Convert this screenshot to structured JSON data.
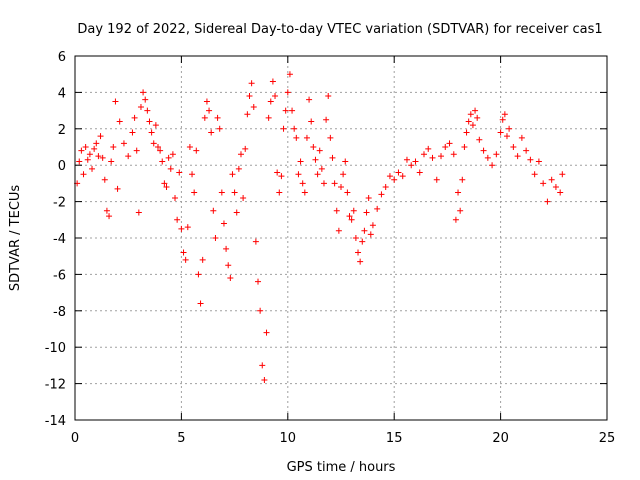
{
  "chart_data": {
    "type": "scatter",
    "title": "Day 192 of 2022, Sidereal Day-to-day VTEC variation (SDTVAR) for receiver cas1",
    "xlabel": "GPS time / hours",
    "ylabel": "SDTVAR / TECUs",
    "xlim": [
      0,
      25
    ],
    "ylim": [
      -14,
      6
    ],
    "xticks": [
      0,
      5,
      10,
      15,
      20,
      25
    ],
    "yticks": [
      -14,
      -12,
      -10,
      -8,
      -6,
      -4,
      -2,
      0,
      2,
      4,
      6
    ],
    "grid": true,
    "marker": "plus",
    "color": "#ff0000",
    "legend": "none",
    "series": [
      {
        "name": "SDTVAR",
        "points": [
          [
            0.1,
            -1.0
          ],
          [
            0.2,
            0.2
          ],
          [
            0.3,
            0.8
          ],
          [
            0.4,
            -0.5
          ],
          [
            0.5,
            1.0
          ],
          [
            0.6,
            0.3
          ],
          [
            0.7,
            0.6
          ],
          [
            0.8,
            -0.2
          ],
          [
            0.9,
            0.9
          ],
          [
            1.0,
            1.2
          ],
          [
            1.1,
            0.5
          ],
          [
            1.2,
            1.6
          ],
          [
            1.3,
            0.4
          ],
          [
            1.4,
            -0.8
          ],
          [
            1.5,
            -2.5
          ],
          [
            1.6,
            -2.8
          ],
          [
            1.7,
            0.2
          ],
          [
            1.8,
            1.0
          ],
          [
            1.9,
            3.5
          ],
          [
            2.0,
            -1.3
          ],
          [
            2.1,
            2.4
          ],
          [
            2.3,
            1.2
          ],
          [
            2.5,
            0.5
          ],
          [
            2.7,
            1.8
          ],
          [
            2.8,
            2.6
          ],
          [
            2.9,
            0.8
          ],
          [
            3.0,
            -2.6
          ],
          [
            3.1,
            3.2
          ],
          [
            3.2,
            4.0
          ],
          [
            3.3,
            3.6
          ],
          [
            3.4,
            3.0
          ],
          [
            3.5,
            2.4
          ],
          [
            3.6,
            1.8
          ],
          [
            3.7,
            1.2
          ],
          [
            3.8,
            2.2
          ],
          [
            3.9,
            1.0
          ],
          [
            4.0,
            0.8
          ],
          [
            4.1,
            0.2
          ],
          [
            4.2,
            -1.0
          ],
          [
            4.3,
            -1.2
          ],
          [
            4.4,
            0.4
          ],
          [
            4.5,
            -0.2
          ],
          [
            4.6,
            0.6
          ],
          [
            4.7,
            -1.8
          ],
          [
            4.8,
            -3.0
          ],
          [
            4.9,
            -0.4
          ],
          [
            5.0,
            -3.5
          ],
          [
            5.1,
            -4.8
          ],
          [
            5.2,
            -5.2
          ],
          [
            5.3,
            -3.4
          ],
          [
            5.4,
            1.0
          ],
          [
            5.5,
            -0.5
          ],
          [
            5.6,
            -1.5
          ],
          [
            5.7,
            0.8
          ],
          [
            5.8,
            -6.0
          ],
          [
            5.9,
            -7.6
          ],
          [
            6.0,
            -5.2
          ],
          [
            6.1,
            2.6
          ],
          [
            6.2,
            3.5
          ],
          [
            6.3,
            3.0
          ],
          [
            6.4,
            1.8
          ],
          [
            6.5,
            -2.5
          ],
          [
            6.6,
            -4.0
          ],
          [
            6.7,
            2.6
          ],
          [
            6.8,
            2.0
          ],
          [
            6.9,
            -1.5
          ],
          [
            7.0,
            -3.2
          ],
          [
            7.1,
            -4.6
          ],
          [
            7.2,
            -5.5
          ],
          [
            7.3,
            -6.2
          ],
          [
            7.4,
            -0.5
          ],
          [
            7.5,
            -1.5
          ],
          [
            7.6,
            -2.6
          ],
          [
            7.7,
            -0.2
          ],
          [
            7.8,
            0.6
          ],
          [
            7.9,
            -1.8
          ],
          [
            8.0,
            0.9
          ],
          [
            8.1,
            2.8
          ],
          [
            8.2,
            3.8
          ],
          [
            8.3,
            4.5
          ],
          [
            8.4,
            3.2
          ],
          [
            8.5,
            -4.2
          ],
          [
            8.6,
            -6.4
          ],
          [
            8.7,
            -8.0
          ],
          [
            8.8,
            -11.0
          ],
          [
            8.9,
            -11.8
          ],
          [
            9.0,
            -9.2
          ],
          [
            9.1,
            2.6
          ],
          [
            9.2,
            3.5
          ],
          [
            9.3,
            4.6
          ],
          [
            9.4,
            3.8
          ],
          [
            9.5,
            -0.4
          ],
          [
            9.6,
            -1.5
          ],
          [
            9.7,
            -0.6
          ],
          [
            9.8,
            2.0
          ],
          [
            9.9,
            3.0
          ],
          [
            10.0,
            4.0
          ],
          [
            10.1,
            5.0
          ],
          [
            10.2,
            3.0
          ],
          [
            10.3,
            2.0
          ],
          [
            10.4,
            1.5
          ],
          [
            10.5,
            -0.5
          ],
          [
            10.6,
            0.2
          ],
          [
            10.7,
            -1.0
          ],
          [
            10.8,
            -1.5
          ],
          [
            10.9,
            1.5
          ],
          [
            11.0,
            3.6
          ],
          [
            11.1,
            2.4
          ],
          [
            11.2,
            1.0
          ],
          [
            11.3,
            0.3
          ],
          [
            11.4,
            -0.5
          ],
          [
            11.5,
            0.8
          ],
          [
            11.6,
            -0.2
          ],
          [
            11.7,
            -1.0
          ],
          [
            11.8,
            2.5
          ],
          [
            11.9,
            3.8
          ],
          [
            12.0,
            1.5
          ],
          [
            12.1,
            0.4
          ],
          [
            12.2,
            -1.0
          ],
          [
            12.3,
            -2.5
          ],
          [
            12.4,
            -3.6
          ],
          [
            12.5,
            -1.2
          ],
          [
            12.6,
            -0.5
          ],
          [
            12.7,
            0.2
          ],
          [
            12.8,
            -1.5
          ],
          [
            12.9,
            -2.8
          ],
          [
            13.0,
            -3.0
          ],
          [
            13.1,
            -2.5
          ],
          [
            13.2,
            -4.0
          ],
          [
            13.3,
            -4.8
          ],
          [
            13.4,
            -5.3
          ],
          [
            13.5,
            -4.2
          ],
          [
            13.6,
            -3.6
          ],
          [
            13.7,
            -2.6
          ],
          [
            13.8,
            -1.8
          ],
          [
            13.9,
            -3.8
          ],
          [
            14.0,
            -3.3
          ],
          [
            14.2,
            -2.4
          ],
          [
            14.4,
            -1.6
          ],
          [
            14.6,
            -1.2
          ],
          [
            14.8,
            -0.6
          ],
          [
            15.0,
            -0.8
          ],
          [
            15.2,
            -0.4
          ],
          [
            15.4,
            -0.6
          ],
          [
            15.6,
            0.3
          ],
          [
            15.8,
            0.0
          ],
          [
            16.0,
            0.2
          ],
          [
            16.2,
            -0.4
          ],
          [
            16.4,
            0.6
          ],
          [
            16.6,
            0.9
          ],
          [
            16.8,
            0.4
          ],
          [
            17.0,
            -0.8
          ],
          [
            17.2,
            0.5
          ],
          [
            17.4,
            1.0
          ],
          [
            17.6,
            1.2
          ],
          [
            17.8,
            0.6
          ],
          [
            17.9,
            -3.0
          ],
          [
            18.0,
            -1.5
          ],
          [
            18.1,
            -2.5
          ],
          [
            18.2,
            -0.8
          ],
          [
            18.3,
            1.0
          ],
          [
            18.4,
            1.8
          ],
          [
            18.5,
            2.4
          ],
          [
            18.6,
            2.8
          ],
          [
            18.7,
            2.2
          ],
          [
            18.8,
            3.0
          ],
          [
            18.9,
            2.6
          ],
          [
            19.0,
            1.4
          ],
          [
            19.2,
            0.8
          ],
          [
            19.4,
            0.4
          ],
          [
            19.6,
            0.0
          ],
          [
            19.8,
            0.6
          ],
          [
            20.0,
            1.8
          ],
          [
            20.1,
            2.5
          ],
          [
            20.2,
            2.8
          ],
          [
            20.3,
            1.6
          ],
          [
            20.4,
            2.0
          ],
          [
            20.6,
            1.0
          ],
          [
            20.8,
            0.5
          ],
          [
            21.0,
            1.5
          ],
          [
            21.2,
            0.8
          ],
          [
            21.4,
            0.3
          ],
          [
            21.6,
            -0.5
          ],
          [
            21.8,
            0.2
          ],
          [
            22.0,
            -1.0
          ],
          [
            22.2,
            -2.0
          ],
          [
            22.4,
            -0.8
          ],
          [
            22.6,
            -1.2
          ],
          [
            22.8,
            -1.5
          ],
          [
            22.9,
            -0.5
          ]
        ]
      }
    ]
  }
}
